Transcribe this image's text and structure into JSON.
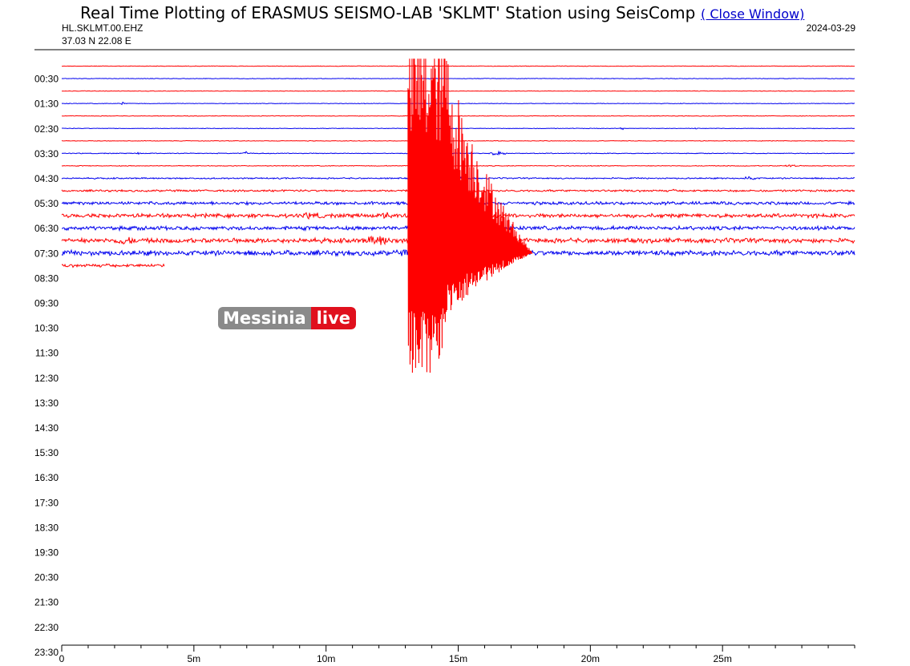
{
  "header": {
    "title": "Real Time Plotting of ERASMUS SEISMO-LAB 'SKLMT' Station using SeisComp",
    "close_link": "( Close Window)",
    "channel": "HL.SKLMT.00.EHZ",
    "coords": "37.03 N 22.08 E",
    "date": "2024-03-29"
  },
  "watermark": {
    "left": "Messinia",
    "right": "live"
  },
  "colors": {
    "red": "#ff0000",
    "blue": "#0000ee",
    "axis": "#000000",
    "link": "#0000cc",
    "wm_gray": "#8a8a8a",
    "wm_red": "#e0101d"
  },
  "chart_data": {
    "type": "line",
    "title": "Real Time Plotting of ERASMUS SEISMO-LAB 'SKLMT' Station using SeisComp",
    "xlabel": "",
    "ylabel": "",
    "x_unit": "minutes",
    "xlim": [
      0,
      30
    ],
    "x_ticks": [
      0,
      5,
      10,
      15,
      20,
      25
    ],
    "x_tick_labels": [
      "0",
      "5m",
      "10m",
      "15m",
      "20m",
      "25m"
    ],
    "y_tick_labels": [
      "00:30",
      "01:30",
      "02:30",
      "03:30",
      "04:30",
      "05:30",
      "06:30",
      "07:30",
      "08:30",
      "09:30",
      "10:30",
      "11:30",
      "12:30",
      "13:30",
      "14:30",
      "15:30",
      "16:30",
      "17:30",
      "18:30",
      "19:30",
      "20:30",
      "21:30",
      "22:30",
      "23:30"
    ],
    "row_half_hours": 48,
    "recorded_until": "08:04",
    "traces": [
      {
        "row": 0,
        "color": "red",
        "noise": 0.3
      },
      {
        "row": 1,
        "color": "blue",
        "noise": 0.3
      },
      {
        "row": 2,
        "color": "red",
        "noise": 0.3
      },
      {
        "row": 3,
        "color": "blue",
        "noise": 0.3,
        "bursts": [
          [
            2.3,
            0.08,
            2.8
          ]
        ]
      },
      {
        "row": 4,
        "color": "red",
        "noise": 0.3
      },
      {
        "row": 5,
        "color": "blue",
        "noise": 0.3,
        "bursts": [
          [
            21.2,
            0.1,
            1.5
          ],
          [
            24.0,
            0.04,
            2.4
          ]
        ]
      },
      {
        "row": 6,
        "color": "red",
        "noise": 0.3
      },
      {
        "row": 7,
        "color": "blue",
        "noise": 0.4,
        "bursts": [
          [
            2.9,
            0.1,
            1.2
          ],
          [
            7.0,
            0.15,
            2.4
          ],
          [
            16.5,
            0.4,
            2.0
          ]
        ]
      },
      {
        "row": 8,
        "color": "red",
        "noise": 0.4,
        "bursts": [
          [
            27.6,
            0.3,
            1.5
          ]
        ]
      },
      {
        "row": 9,
        "color": "blue",
        "noise": 0.7,
        "bursts": [
          [
            26.0,
            0.3,
            2.0
          ],
          [
            15.0,
            0.5,
            1.5
          ]
        ]
      },
      {
        "row": 10,
        "color": "red",
        "noise": 1.0,
        "bursts": [
          [
            23.1,
            0.05,
            4.0
          ]
        ]
      },
      {
        "row": 11,
        "color": "blue",
        "noise": 1.6
      },
      {
        "row": 12,
        "color": "red",
        "noise": 2.0,
        "bursts": [
          [
            9.5,
            0.5,
            2.0
          ],
          [
            12.3,
            0.2,
            4.0
          ]
        ]
      },
      {
        "row": 13,
        "color": "blue",
        "noise": 2.0
      },
      {
        "row": 14,
        "color": "red",
        "noise": 2.4,
        "bursts": [
          [
            2.4,
            0.4,
            3.0
          ],
          [
            12.0,
            0.6,
            4.0
          ]
        ]
      },
      {
        "row": 15,
        "color": "blue",
        "noise": 2.6,
        "bursts": [
          [
            13.5,
            1.0,
            2.0
          ],
          [
            16.2,
            0.4,
            3.0
          ]
        ]
      },
      {
        "row": 16,
        "color": "red",
        "noise": 1.6,
        "x_end": 3.9
      }
    ],
    "quake": {
      "row": 15,
      "color": "red",
      "onset_min": 13.1,
      "peak_min": 14.4,
      "coda_end_min": 17.8,
      "clip_top_row": -0.6,
      "clip_bottom_row": 24.6
    }
  }
}
